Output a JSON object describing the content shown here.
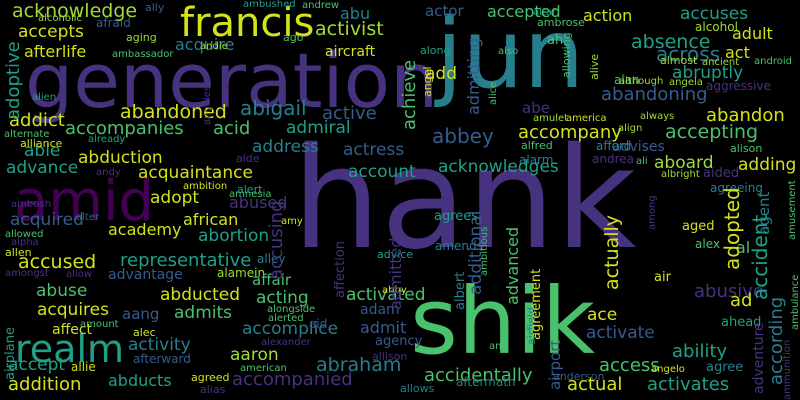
{
  "palette": {
    "yellow": "#d3e21b",
    "lime": "#a0da39",
    "green": "#4ac16d",
    "seagreen": "#1fa187",
    "teal": "#277f8e",
    "steel": "#365c8d",
    "indigo": "#46327e",
    "purple": "#440154",
    "grey": "#3e4a89"
  },
  "words": {
    "hank": "hank",
    "generation": "generation",
    "jun": "jun",
    "shik": "shik",
    "amid": "amid",
    "francis": "francis",
    "realm": "realm",
    "acknowledge": "acknowledge",
    "accepts": "accepts",
    "acquire": "acquire",
    "activist": "activist",
    "abu": "abu",
    "actor": "actor",
    "accepted": "accepted",
    "action": "action",
    "accuses": "accuses",
    "absence": "absence",
    "adult": "adult",
    "across": "across",
    "act": "act",
    "add": "add",
    "abruptly": "abruptly",
    "admitting": "admitting",
    "achieve": "achieve",
    "abe": "abe",
    "abandoning": "abandoning",
    "abandon": "abandon",
    "abandoned": "abandoned",
    "abigail": "abigail",
    "active": "active",
    "addict": "addict",
    "accompanies": "accompanies",
    "acid": "acid",
    "admiral": "admiral",
    "abbey": "abbey",
    "accompany": "accompany",
    "accepting": "accepting",
    "able": "able",
    "address": "address",
    "actress": "actress",
    "abduction": "abduction",
    "acquaintance": "acquaintance",
    "account": "account",
    "acknowledges": "acknowledges",
    "aboard": "aboard",
    "adding": "adding",
    "advance": "advance",
    "adopt": "adopt",
    "abused": "abused",
    "accusing": "accusing",
    "additional": "additional",
    "actually": "actually",
    "adopted": "adopted",
    "accident": "accident",
    "acquired": "acquired",
    "academy": "academy",
    "abortion": "abortion",
    "accused": "accused",
    "representative": "representative",
    "admitted": "admitted",
    "advanced": "advanced",
    "abuse": "abuse",
    "abducted": "abducted",
    "acting": "acting",
    "activated": "activated",
    "abusive": "abusive",
    "acquires": "acquires",
    "aang": "aang",
    "admits": "admits",
    "accomplice": "accomplice",
    "ace": "ace",
    "activate": "activate",
    "according": "according",
    "activity": "activity",
    "aaron": "aaron",
    "abraham": "abraham",
    "accidentally": "accidentally",
    "access": "access",
    "ability": "ability",
    "accept": "accept",
    "addition": "addition",
    "abducts": "abducts",
    "accompanied": "accompanied",
    "actual": "actual",
    "activates": "activates",
    "adoptive": "adoptive",
    "afterlife": "afterlife",
    "aircraft": "aircraft",
    "agent": "agent",
    "advantage": "advantage",
    "african": "african",
    "affair": "affair",
    "alley": "alley",
    "adam": "adam",
    "admit": "admit",
    "abby": "abby",
    "affection": "affection",
    "agreement": "agreement",
    "airport": "airport",
    "ad": "ad",
    "adventure": "adventure",
    "air": "air",
    "alcohol": "alcohol",
    "aggressive": "aggressive",
    "advises": "advises",
    "alarm": "alarm",
    "afford": "afford",
    "alan": "alan",
    "ah": "ah",
    "agency": "agency",
    "agrees": "agrees",
    "aged": "aged",
    "alex": "alex",
    "ahead": "ahead",
    "aftermath": "aftermath",
    "allows": "allows",
    "agree": "agree",
    "airplane": "airplane",
    "affect": "affect",
    "allen": "allen",
    "alcoholic": "alcoholic",
    "afraid": "afraid",
    "aging": "aging",
    "ally": "ally",
    "ambushed": "ambushed",
    "andrew": "andrew",
    "ambassador": "ambassador",
    "andie": "andie",
    "ago": "ago",
    "along": "along",
    "also": "also",
    "altar": "altar",
    "ambrose": "ambrose",
    "allowing": "allowing",
    "alive": "alive",
    "almost": "almost",
    "ancient": "ancient",
    "android": "android",
    "although": "although",
    "angela": "angela",
    "angeles": "angeles",
    "angel": "angel",
    "alien": "alien",
    "alternate": "alternate",
    "alliance": "alliance",
    "already": "already",
    "alice": "alice",
    "amulet": "amulet",
    "america": "america",
    "always": "always",
    "align": "align",
    "aided": "aided",
    "alison": "alison",
    "aide": "aide",
    "alert": "alert",
    "ambition": "ambition",
    "albright": "albright",
    "alfred": "alfred",
    "ali": "ali",
    "andrea": "andrea",
    "among": "among",
    "agreeing": "agreeing",
    "ambush": "ambush",
    "andy": "andy",
    "allowed": "allowed",
    "alter": "alter",
    "amy": "amy",
    "amends": "amends",
    "ambitious": "ambitious",
    "amusement": "amusement",
    "amnesia": "amnesia",
    "alamein": "alamein",
    "alongside": "alongside",
    "amongst": "amongst",
    "allow": "allow",
    "alpha": "alpha",
    "advice": "advice",
    "airfield": "airfield",
    "albert": "albert",
    "alerted": "alerted",
    "amount": "amount",
    "aid": "aid",
    "alexander": "alexander",
    "alec": "alec",
    "allie": "allie",
    "ana": "ana",
    "angelo": "angelo",
    "ammunition": "ammunition",
    "ambulance": "ambulance",
    "afterward": "afterward",
    "agreed": "agreed",
    "american": "american",
    "alias": "alias",
    "allison": "allison",
    "anderson": "anderson",
    "al": "al"
  }
}
